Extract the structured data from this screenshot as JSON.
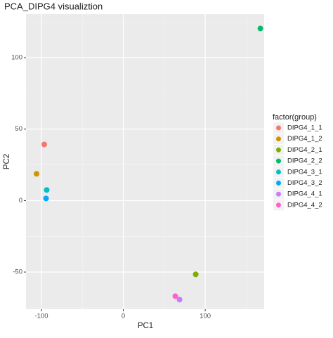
{
  "chart_data": {
    "type": "scatter",
    "title": "PCA_DIPG4 visualiztion",
    "x_label": "PC1",
    "y_label": "PC2",
    "legend_title": "factor(group)",
    "legend_position": "right",
    "grid": true,
    "xlim": [
      -118.9,
      172
    ],
    "ylim": [
      -76,
      130.5
    ],
    "xticks": [
      -100,
      0,
      100
    ],
    "yticks": [
      -50,
      0,
      50,
      100
    ],
    "series": [
      {
        "name": "DIPG4_1_1",
        "color": "#F8766D",
        "x": [
          -96.6
        ],
        "values": [
          39.3
        ]
      },
      {
        "name": "DIPG4_1_2",
        "color": "#CD9600",
        "x": [
          -106
        ],
        "values": [
          18.7
        ]
      },
      {
        "name": "DIPG4_2_1",
        "color": "#7CAE00",
        "x": [
          88.4
        ],
        "values": [
          -51.6
        ]
      },
      {
        "name": "DIPG4_2_2",
        "color": "#00BE67",
        "x": [
          167.4
        ],
        "values": [
          120.4
        ]
      },
      {
        "name": "DIPG4_3_1",
        "color": "#00BFC4",
        "x": [
          -93.6
        ],
        "values": [
          7.4
        ]
      },
      {
        "name": "DIPG4_3_2",
        "color": "#00A9FF",
        "x": [
          -94.4
        ],
        "values": [
          1.5
        ]
      },
      {
        "name": "DIPG4_4_1",
        "color": "#C77CFF",
        "x": [
          68.7
        ],
        "values": [
          -69.3
        ]
      },
      {
        "name": "DIPG4_4_2",
        "color": "#FF61CC",
        "x": [
          63.5
        ],
        "values": [
          -66.9
        ]
      }
    ]
  }
}
